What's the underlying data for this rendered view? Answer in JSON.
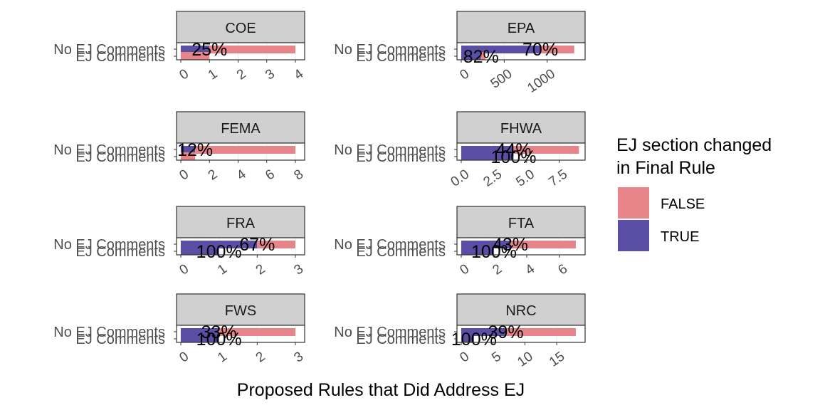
{
  "chart_data": {
    "type": "bar",
    "orientation": "horizontal",
    "facet": "wrap",
    "categories": [
      "No EJ Comments",
      "EJ Comments"
    ],
    "xlabel": "Proposed Rules that Did Address EJ",
    "legend": {
      "title_lines": [
        "EJ section changed",
        "in Final Rule"
      ],
      "position": "right",
      "entries": [
        {
          "name": "FALSE",
          "color": "#E6848A"
        },
        {
          "name": "TRUE",
          "color": "#5A4FA5"
        }
      ]
    },
    "panels": [
      {
        "label": "COE",
        "xlim": [
          0,
          4.2
        ],
        "ticks": [
          "0",
          "1",
          "2",
          "3",
          "4"
        ],
        "tick_values": [
          0,
          1,
          2,
          3,
          4
        ],
        "bars": [
          {
            "category": "No EJ Comments",
            "false": 3,
            "true": 1,
            "pct": "25%"
          },
          {
            "category": "EJ Comments",
            "false": 1,
            "true": 0,
            "pct": ""
          }
        ]
      },
      {
        "label": "EPA",
        "xlim": [
          0,
          1400
        ],
        "ticks": [
          "0",
          "500",
          "1000"
        ],
        "tick_values": [
          0,
          500,
          1000
        ],
        "bars": [
          {
            "category": "No EJ Comments",
            "false": 395,
            "true": 920,
            "pct": "70%"
          },
          {
            "category": "EJ Comments",
            "false": 50,
            "true": 230,
            "pct": "82%"
          }
        ]
      },
      {
        "label": "FEMA",
        "xlim": [
          0,
          8.4
        ],
        "ticks": [
          "0",
          "2",
          "4",
          "6",
          "8"
        ],
        "tick_values": [
          0,
          2,
          4,
          6,
          8
        ],
        "bars": [
          {
            "category": "No EJ Comments",
            "false": 7,
            "true": 1,
            "pct": "12%"
          },
          {
            "category": "EJ Comments",
            "false": 1,
            "true": 0,
            "pct": ""
          }
        ]
      },
      {
        "label": "FHWA",
        "xlim": [
          0,
          9.2
        ],
        "ticks": [
          "0.0",
          "2.5",
          "5.0",
          "7.5"
        ],
        "tick_values": [
          0,
          2.5,
          5,
          7.5
        ],
        "bars": [
          {
            "category": "No EJ Comments",
            "false": 5,
            "true": 4,
            "pct": "44%"
          },
          {
            "category": "EJ Comments",
            "false": 0,
            "true": 4,
            "pct": "100%"
          }
        ]
      },
      {
        "label": "FRA",
        "xlim": [
          0,
          3.15
        ],
        "ticks": [
          "0",
          "1",
          "2",
          "3"
        ],
        "tick_values": [
          0,
          1,
          2,
          3
        ],
        "bars": [
          {
            "category": "No EJ Comments",
            "false": 1,
            "true": 2,
            "pct": "67%"
          },
          {
            "category": "EJ Comments",
            "false": 0,
            "true": 1,
            "pct": "100%"
          }
        ]
      },
      {
        "label": "FTA",
        "xlim": [
          0,
          7.35
        ],
        "ticks": [
          "0",
          "2",
          "4",
          "6"
        ],
        "tick_values": [
          0,
          2,
          4,
          6
        ],
        "bars": [
          {
            "category": "No EJ Comments",
            "false": 4,
            "true": 3,
            "pct": "43%"
          },
          {
            "category": "EJ Comments",
            "false": 0,
            "true": 2,
            "pct": "100%"
          }
        ]
      },
      {
        "label": "FWS",
        "xlim": [
          0,
          3.15
        ],
        "ticks": [
          "0",
          "1",
          "2",
          "3"
        ],
        "tick_values": [
          0,
          1,
          2,
          3
        ],
        "bars": [
          {
            "category": "No EJ Comments",
            "false": 2,
            "true": 1,
            "pct": "33%"
          },
          {
            "category": "EJ Comments",
            "false": 0,
            "true": 1,
            "pct": "100%"
          }
        ]
      },
      {
        "label": "NRC",
        "xlim": [
          0,
          18.9
        ],
        "ticks": [
          "0",
          "5",
          "10",
          "15"
        ],
        "tick_values": [
          0,
          5,
          10,
          15
        ],
        "bars": [
          {
            "category": "No EJ Comments",
            "false": 11,
            "true": 7,
            "pct": "39%"
          },
          {
            "category": "EJ Comments",
            "false": 0,
            "true": 2,
            "pct": "100%"
          }
        ]
      }
    ]
  }
}
